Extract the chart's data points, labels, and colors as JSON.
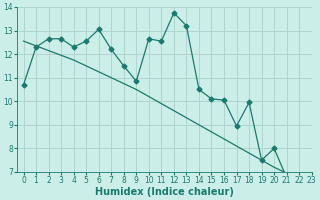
{
  "x": [
    0,
    1,
    2,
    3,
    4,
    5,
    6,
    7,
    8,
    9,
    10,
    11,
    12,
    13,
    14,
    15,
    16,
    17,
    18,
    19,
    20,
    21,
    22,
    23
  ],
  "y_curve": [
    10.7,
    12.3,
    12.65,
    12.65,
    12.3,
    12.55,
    13.05,
    12.2,
    11.5,
    10.85,
    12.65,
    12.55,
    13.75,
    13.2,
    10.5,
    10.1,
    10.05,
    8.95,
    9.95,
    7.5,
    8.0,
    6.75,
    6.85,
    6.75
  ],
  "y_trend": [
    12.55,
    12.35,
    12.15,
    11.95,
    11.75,
    11.5,
    11.25,
    11.0,
    10.75,
    10.5,
    10.2,
    9.9,
    9.6,
    9.3,
    9.0,
    8.7,
    8.4,
    8.1,
    7.8,
    7.5,
    7.2,
    6.95,
    6.78,
    6.65
  ],
  "line_color": "#1a7a6e",
  "bg_color": "#cceee8",
  "grid_color": "#b0d4ce",
  "xlabel": "Humidex (Indice chaleur)",
  "ylim": [
    7,
    14
  ],
  "xlim": [
    -0.5,
    23
  ],
  "yticks": [
    7,
    8,
    9,
    10,
    11,
    12,
    13,
    14
  ],
  "xticks": [
    0,
    1,
    2,
    3,
    4,
    5,
    6,
    7,
    8,
    9,
    10,
    11,
    12,
    13,
    14,
    15,
    16,
    17,
    18,
    19,
    20,
    21,
    22,
    23
  ],
  "xlabel_fontsize": 7,
  "tick_fontsize": 5.5,
  "marker_size": 2.5,
  "linewidth": 0.9
}
